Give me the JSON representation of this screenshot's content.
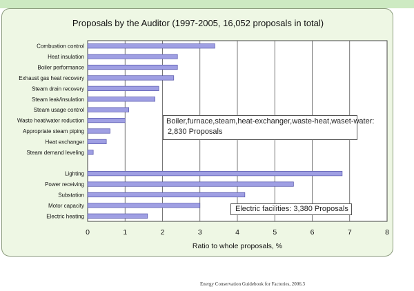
{
  "chart_data": {
    "type": "bar",
    "orientation": "horizontal",
    "title": "Proposals by the Auditor (1997-2005, 16,052 proposals in total)",
    "xlabel": "Ratio to whole proposals, %",
    "ylabel": "",
    "xlim": [
      0,
      8
    ],
    "xticks": [
      0,
      1,
      2,
      3,
      4,
      5,
      6,
      7,
      8
    ],
    "grid": "vertical",
    "bar_color": "#9f9fe3",
    "categories": [
      "Combustion control",
      "Heat insulation",
      "Boiler performance",
      "Exhaust gas heat recovery",
      "Steam drain recovery",
      "Steam leak/insulation",
      "Steam usage control",
      "Waste heat/water reduction",
      "Appropriate steam piping",
      "Heat exchanger",
      "Steam demand leveling",
      "",
      "Lighting",
      "Power receiving",
      "Substation",
      "Motor capacity",
      "Electric heating"
    ],
    "values": [
      3.4,
      2.4,
      2.4,
      2.3,
      1.9,
      1.8,
      1.1,
      1.0,
      0.6,
      0.5,
      0.15,
      null,
      6.8,
      5.5,
      4.2,
      3.0,
      1.6
    ],
    "annotations": [
      {
        "line1": "Boiler,furnace,steam,heat-exchanger,waste-heat,waset-water:",
        "line2": "2,830 Proposals"
      },
      {
        "text": "Electric facilities: 3,380 Proposals"
      }
    ]
  },
  "source": "Energy Conservation Guidebook for Factories, 2006.3",
  "colors": {
    "panel": "#eef7e4",
    "plot": "#ffffff",
    "bar": "#9f9fe3",
    "bar_edge": "#5555aa",
    "top_strip": "#cdeac2"
  }
}
